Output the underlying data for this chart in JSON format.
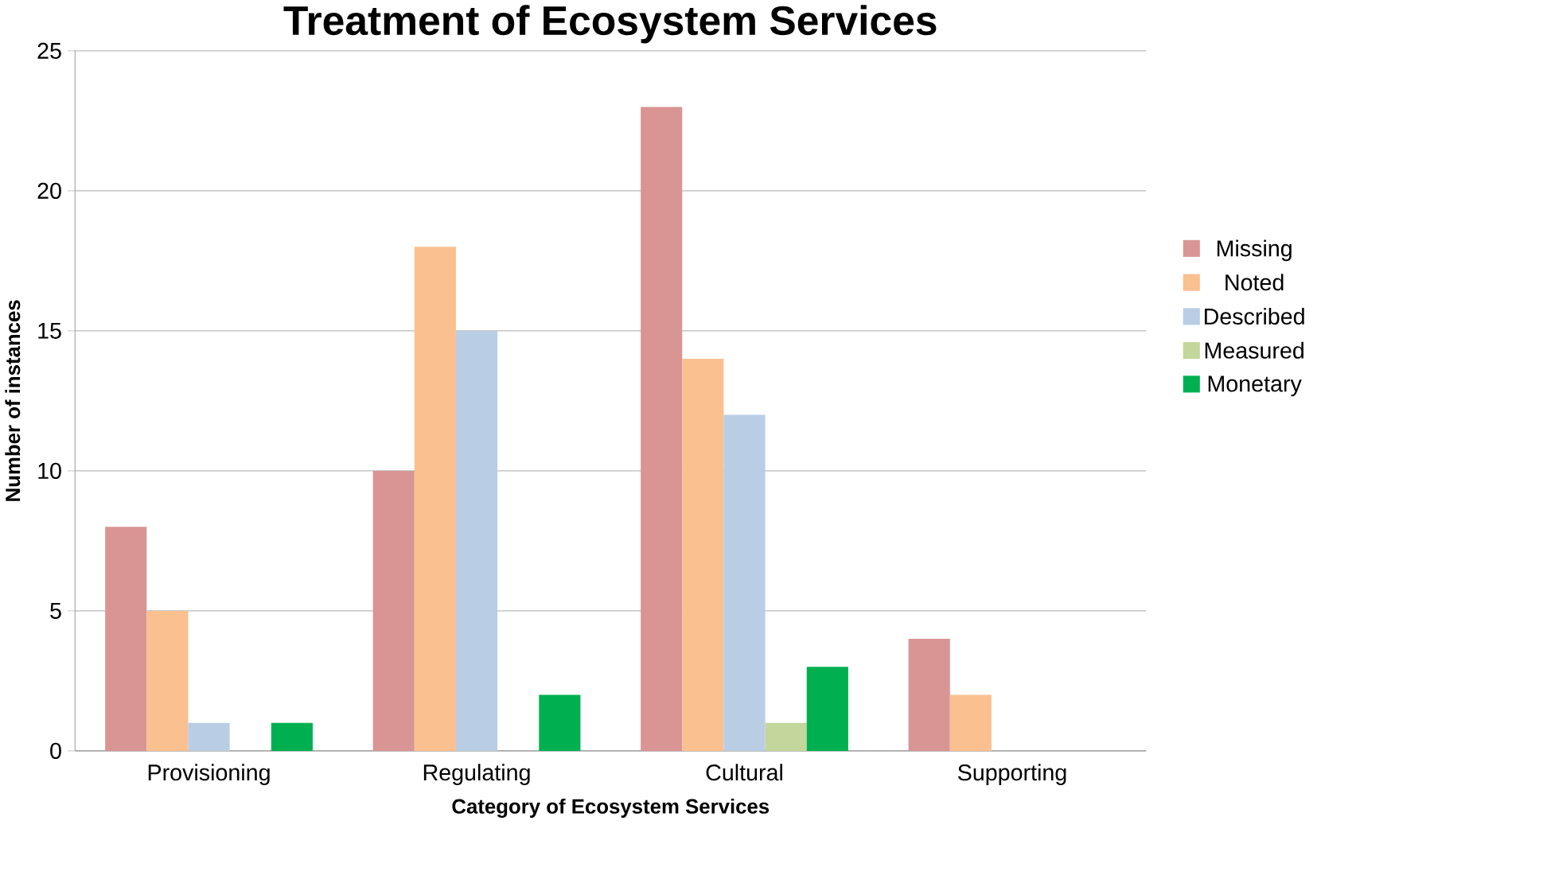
{
  "chart_data": {
    "type": "bar",
    "title": "Treatment of Ecosystem Services",
    "xlabel": "Category of Ecosystem Services",
    "ylabel": "Number of instances",
    "categories": [
      "Provisioning",
      "Regulating",
      "Cultural",
      "Supporting"
    ],
    "series": [
      {
        "name": "Missing",
        "color": "#d99594",
        "values": [
          8,
          10,
          23,
          4
        ]
      },
      {
        "name": "Noted",
        "color": "#fac090",
        "values": [
          5,
          18,
          14,
          2
        ]
      },
      {
        "name": "Described",
        "color": "#b9cde5",
        "values": [
          1,
          15,
          12,
          0
        ]
      },
      {
        "name": "Measured",
        "color": "#c3d69b",
        "values": [
          0,
          0,
          1,
          0
        ]
      },
      {
        "name": "Monetary",
        "color": "#00b050",
        "values": [
          1,
          2,
          3,
          0
        ]
      }
    ],
    "ylim": [
      0,
      25
    ],
    "yticks": [
      0,
      5,
      10,
      15,
      20,
      25
    ],
    "grid": "y",
    "legend": "right"
  }
}
